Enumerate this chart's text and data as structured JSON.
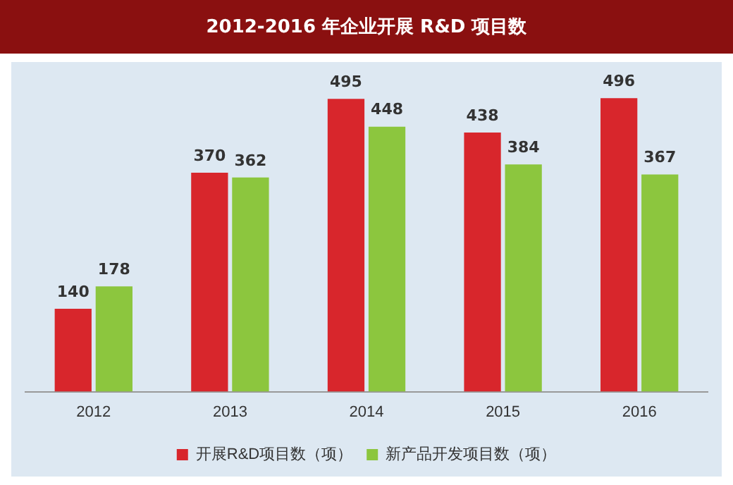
{
  "chart_data": {
    "type": "bar",
    "title": "2012-2016 年企业开展 R&D 项目数",
    "categories": [
      "2012",
      "2013",
      "2014",
      "2015",
      "2016"
    ],
    "series": [
      {
        "name": "开展R&D项目数（项）",
        "color": "#d8262c",
        "values": [
          140,
          370,
          495,
          438,
          496
        ]
      },
      {
        "name": "新产品开发项目数（项）",
        "color": "#8cc63e",
        "values": [
          178,
          362,
          448,
          384,
          367
        ]
      }
    ],
    "data_labels": true,
    "legend": "bottom",
    "grid": false
  }
}
